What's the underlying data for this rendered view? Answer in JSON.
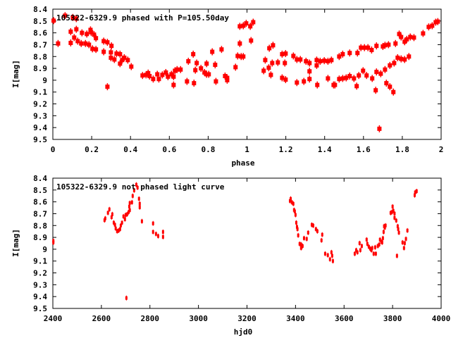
{
  "colors": {
    "points": "#ff0000",
    "axes": "#000000"
  },
  "chart_data": [
    {
      "type": "scatter",
      "title": "105322-6329.9 phased with P=105.50day",
      "xlabel": "phase",
      "ylabel": "I[mag]",
      "xlim": [
        0,
        2
      ],
      "ylim": [
        8.4,
        9.5
      ],
      "y_inverted": true,
      "grid": false,
      "xticks": [
        "0",
        "0.2",
        "0.4",
        "0.6",
        "0.8",
        "1",
        "1.2",
        "1.4",
        "1.6",
        "1.8",
        "2"
      ],
      "xtick_values": [
        0,
        0.2,
        0.4,
        0.6,
        0.8,
        1,
        1.2,
        1.4,
        1.6,
        1.8,
        2
      ],
      "yticks": [
        "8.4",
        "8.5",
        "8.6",
        "8.7",
        "8.8",
        "8.9",
        "9",
        "9.1",
        "9.2",
        "9.3",
        "9.4",
        "9.5"
      ],
      "ytick_values": [
        8.4,
        8.5,
        8.6,
        8.7,
        8.8,
        8.9,
        9.0,
        9.1,
        9.2,
        9.3,
        9.4,
        9.5
      ],
      "points": [
        [
          0.004,
          8.497
        ],
        [
          0.027,
          8.69
        ],
        [
          0.063,
          8.455
        ],
        [
          0.092,
          8.59
        ],
        [
          0.092,
          8.685
        ],
        [
          0.103,
          8.47
        ],
        [
          0.11,
          8.64
        ],
        [
          0.121,
          8.48
        ],
        [
          0.121,
          8.57
        ],
        [
          0.128,
          8.67
        ],
        [
          0.146,
          8.69
        ],
        [
          0.15,
          8.6
        ],
        [
          0.168,
          8.69
        ],
        [
          0.175,
          8.61
        ],
        [
          0.186,
          8.7
        ],
        [
          0.194,
          8.575
        ],
        [
          0.197,
          8.595
        ],
        [
          0.204,
          8.735
        ],
        [
          0.212,
          8.615
        ],
        [
          0.222,
          8.74
        ],
        [
          0.222,
          8.645
        ],
        [
          0.262,
          8.67
        ],
        [
          0.262,
          8.76
        ],
        [
          0.281,
          8.68
        ],
        [
          0.281,
          9.055
        ],
        [
          0.299,
          8.765
        ],
        [
          0.299,
          8.81
        ],
        [
          0.302,
          8.71
        ],
        [
          0.317,
          8.825
        ],
        [
          0.328,
          8.775
        ],
        [
          0.346,
          8.78
        ],
        [
          0.346,
          8.86
        ],
        [
          0.357,
          8.83
        ],
        [
          0.368,
          8.81
        ],
        [
          0.386,
          8.83
        ],
        [
          0.404,
          8.885
        ],
        [
          0.462,
          8.96
        ],
        [
          0.48,
          8.955
        ],
        [
          0.491,
          8.94
        ],
        [
          0.498,
          8.965
        ],
        [
          0.517,
          8.99
        ],
        [
          0.538,
          8.95
        ],
        [
          0.546,
          8.99
        ],
        [
          0.564,
          8.955
        ],
        [
          0.582,
          8.935
        ],
        [
          0.593,
          8.97
        ],
        [
          0.611,
          8.95
        ],
        [
          0.622,
          8.97
        ],
        [
          0.622,
          9.04
        ],
        [
          0.629,
          8.92
        ],
        [
          0.64,
          8.91
        ],
        [
          0.658,
          8.91
        ],
        [
          0.691,
          9.01
        ],
        [
          0.698,
          8.84
        ],
        [
          0.727,
          9.025
        ],
        [
          0.723,
          8.78
        ],
        [
          0.734,
          8.915
        ],
        [
          0.741,
          8.855
        ],
        [
          0.763,
          8.9
        ],
        [
          0.781,
          8.935
        ],
        [
          0.792,
          8.86
        ],
        [
          0.792,
          8.95
        ],
        [
          0.803,
          8.95
        ],
        [
          0.821,
          8.76
        ],
        [
          0.836,
          8.87
        ],
        [
          0.84,
          9.01
        ],
        [
          0.869,
          8.74
        ],
        [
          0.887,
          8.965
        ],
        [
          0.898,
          8.98
        ],
        [
          0.898,
          9.0
        ],
        [
          0.941,
          8.89
        ],
        [
          0.952,
          8.795
        ],
        [
          0.963,
          8.69
        ],
        [
          0.963,
          8.545
        ],
        [
          0.97,
          8.8
        ],
        [
          0.981,
          8.54
        ],
        [
          0.981,
          8.8
        ],
        [
          0.996,
          8.52
        ],
        [
          1.017,
          8.545
        ],
        [
          1.021,
          8.665
        ],
        [
          1.032,
          8.51
        ],
        [
          1.086,
          8.92
        ],
        [
          1.094,
          8.83
        ],
        [
          1.112,
          8.895
        ],
        [
          1.115,
          8.73
        ],
        [
          1.123,
          8.955
        ],
        [
          1.134,
          8.705
        ],
        [
          1.13,
          8.855
        ],
        [
          1.159,
          8.85
        ],
        [
          1.181,
          8.98
        ],
        [
          1.181,
          8.78
        ],
        [
          1.195,
          8.855
        ],
        [
          1.199,
          8.775
        ],
        [
          1.199,
          8.995
        ],
        [
          1.239,
          8.795
        ],
        [
          1.257,
          8.825
        ],
        [
          1.257,
          9.02
        ],
        [
          1.275,
          8.825
        ],
        [
          1.293,
          9.01
        ],
        [
          1.304,
          8.84
        ],
        [
          1.322,
          8.855
        ],
        [
          1.322,
          8.925
        ],
        [
          1.322,
          8.99
        ],
        [
          1.359,
          8.83
        ],
        [
          1.359,
          8.875
        ],
        [
          1.362,
          9.04
        ],
        [
          1.377,
          8.84
        ],
        [
          1.398,
          8.835
        ],
        [
          1.417,
          8.84
        ],
        [
          1.417,
          8.985
        ],
        [
          1.435,
          8.83
        ],
        [
          1.446,
          9.04
        ],
        [
          1.453,
          9.04
        ],
        [
          1.475,
          8.8
        ],
        [
          1.475,
          8.99
        ],
        [
          1.493,
          8.78
        ],
        [
          1.493,
          8.985
        ],
        [
          1.511,
          8.98
        ],
        [
          1.529,
          8.77
        ],
        [
          1.529,
          8.965
        ],
        [
          1.551,
          8.985
        ],
        [
          1.565,
          9.05
        ],
        [
          1.569,
          8.77
        ],
        [
          1.576,
          8.96
        ],
        [
          1.587,
          8.725
        ],
        [
          1.598,
          8.92
        ],
        [
          1.605,
          8.725
        ],
        [
          1.616,
          8.96
        ],
        [
          1.623,
          8.725
        ],
        [
          1.642,
          8.745
        ],
        [
          1.645,
          8.985
        ],
        [
          1.663,
          9.085
        ],
        [
          1.667,
          8.71
        ],
        [
          1.667,
          8.93
        ],
        [
          1.682,
          9.41
        ],
        [
          1.689,
          8.945
        ],
        [
          1.7,
          8.715
        ],
        [
          1.711,
          8.91
        ],
        [
          1.711,
          8.705
        ],
        [
          1.718,
          9.025
        ],
        [
          1.729,
          8.7
        ],
        [
          1.736,
          8.875
        ],
        [
          1.736,
          9.055
        ],
        [
          1.754,
          9.1
        ],
        [
          1.758,
          8.855
        ],
        [
          1.765,
          8.69
        ],
        [
          1.776,
          8.81
        ],
        [
          1.784,
          8.61
        ],
        [
          1.794,
          8.635
        ],
        [
          1.794,
          8.82
        ],
        [
          1.812,
          8.825
        ],
        [
          1.812,
          8.675
        ],
        [
          1.823,
          8.655
        ],
        [
          1.834,
          8.8
        ],
        [
          1.841,
          8.635
        ],
        [
          1.86,
          8.64
        ],
        [
          1.907,
          8.605
        ],
        [
          1.936,
          8.55
        ],
        [
          1.954,
          8.54
        ],
        [
          1.972,
          8.51
        ],
        [
          1.983,
          8.505
        ]
      ]
    },
    {
      "type": "scatter",
      "title": "105322-6329.9 not phased light curve",
      "xlabel": "hjd0",
      "ylabel": "I[mag]",
      "xlim": [
        2400,
        4000
      ],
      "ylim": [
        8.4,
        9.5
      ],
      "y_inverted": true,
      "grid": false,
      "xticks": [
        "2400",
        "2600",
        "2800",
        "3000",
        "3200",
        "3400",
        "3600",
        "3800",
        "4000"
      ],
      "xtick_values": [
        2400,
        2600,
        2800,
        3000,
        3200,
        3400,
        3600,
        3800,
        4000
      ],
      "yticks": [
        "8.4",
        "8.5",
        "8.6",
        "8.7",
        "8.8",
        "8.9",
        "9",
        "9.1",
        "9.2",
        "9.3",
        "9.4",
        "9.5"
      ],
      "ytick_values": [
        8.4,
        8.5,
        8.6,
        8.7,
        8.8,
        8.9,
        9.0,
        9.1,
        9.2,
        9.3,
        9.4,
        9.5
      ],
      "points": [
        [
          2402,
          8.943
        ],
        [
          2402,
          8.93
        ],
        [
          2613,
          8.755
        ],
        [
          2616,
          8.74
        ],
        [
          2627,
          8.693
        ],
        [
          2633,
          8.663
        ],
        [
          2642,
          8.73
        ],
        [
          2645,
          8.705
        ],
        [
          2651,
          8.776
        ],
        [
          2656,
          8.794
        ],
        [
          2659,
          8.824
        ],
        [
          2665,
          8.848
        ],
        [
          2671,
          8.842
        ],
        [
          2677,
          8.83
        ],
        [
          2680,
          8.8
        ],
        [
          2685,
          8.776
        ],
        [
          2691,
          8.723
        ],
        [
          2697,
          8.747
        ],
        [
          2700,
          8.711
        ],
        [
          2703,
          9.412
        ],
        [
          2706,
          8.705
        ],
        [
          2712,
          8.687
        ],
        [
          2715,
          8.64
        ],
        [
          2717,
          8.61
        ],
        [
          2717,
          8.67
        ],
        [
          2726,
          8.604
        ],
        [
          2729,
          8.55
        ],
        [
          2735,
          8.503
        ],
        [
          2744,
          8.455
        ],
        [
          2749,
          8.48
        ],
        [
          2755,
          8.574
        ],
        [
          2758,
          8.616
        ],
        [
          2758,
          8.646
        ],
        [
          2767,
          8.764
        ],
        [
          2813,
          8.782
        ],
        [
          2813,
          8.854
        ],
        [
          2825,
          8.871
        ],
        [
          2834,
          8.889
        ],
        [
          2854,
          8.854
        ],
        [
          2854,
          8.896
        ],
        [
          3380,
          8.574
        ],
        [
          3377,
          8.592
        ],
        [
          3385,
          8.604
        ],
        [
          3391,
          8.616
        ],
        [
          3394,
          8.669
        ],
        [
          3397,
          8.68
        ],
        [
          3400,
          8.71
        ],
        [
          3403,
          8.776
        ],
        [
          3406,
          8.812
        ],
        [
          3408,
          8.83
        ],
        [
          3411,
          8.883
        ],
        [
          3417,
          8.955
        ],
        [
          3423,
          8.96
        ],
        [
          3423,
          8.99
        ],
        [
          3429,
          8.973
        ],
        [
          3435,
          8.907
        ],
        [
          3446,
          8.913
        ],
        [
          3452,
          8.86
        ],
        [
          3467,
          8.794
        ],
        [
          3473,
          8.8
        ],
        [
          3484,
          8.83
        ],
        [
          3490,
          8.848
        ],
        [
          3507,
          8.925
        ],
        [
          3510,
          8.877
        ],
        [
          3522,
          9.038
        ],
        [
          3533,
          9.05
        ],
        [
          3542,
          9.085
        ],
        [
          3548,
          9.026
        ],
        [
          3551,
          9.055
        ],
        [
          3554,
          9.1
        ],
        [
          3644,
          9.038
        ],
        [
          3650,
          9.008
        ],
        [
          3655,
          9.026
        ],
        [
          3664,
          8.949
        ],
        [
          3667,
          9.008
        ],
        [
          3673,
          8.973
        ],
        [
          3693,
          8.919
        ],
        [
          3696,
          8.955
        ],
        [
          3702,
          8.979
        ],
        [
          3708,
          8.996
        ],
        [
          3713,
          9.008
        ],
        [
          3716,
          8.99
        ],
        [
          3722,
          9.038
        ],
        [
          3728,
          8.984
        ],
        [
          3731,
          9.038
        ],
        [
          3739,
          8.973
        ],
        [
          3745,
          8.96
        ],
        [
          3748,
          8.919
        ],
        [
          3754,
          8.937
        ],
        [
          3757,
          8.943
        ],
        [
          3760,
          8.907
        ],
        [
          3763,
          8.854
        ],
        [
          3765,
          8.806
        ],
        [
          3768,
          8.818
        ],
        [
          3771,
          8.8
        ],
        [
          3792,
          8.693
        ],
        [
          3797,
          8.687
        ],
        [
          3800,
          8.64
        ],
        [
          3803,
          8.675
        ],
        [
          3808,
          8.699
        ],
        [
          3808,
          8.735
        ],
        [
          3815,
          8.758
        ],
        [
          3818,
          9.056
        ],
        [
          3821,
          8.806
        ],
        [
          3823,
          8.83
        ],
        [
          3826,
          8.86
        ],
        [
          3841,
          8.943
        ],
        [
          3847,
          8.99
        ],
        [
          3850,
          8.949
        ],
        [
          3855,
          8.913
        ],
        [
          3861,
          8.842
        ],
        [
          3891,
          8.544
        ],
        [
          3893,
          8.52
        ],
        [
          3899,
          8.51
        ]
      ]
    }
  ]
}
